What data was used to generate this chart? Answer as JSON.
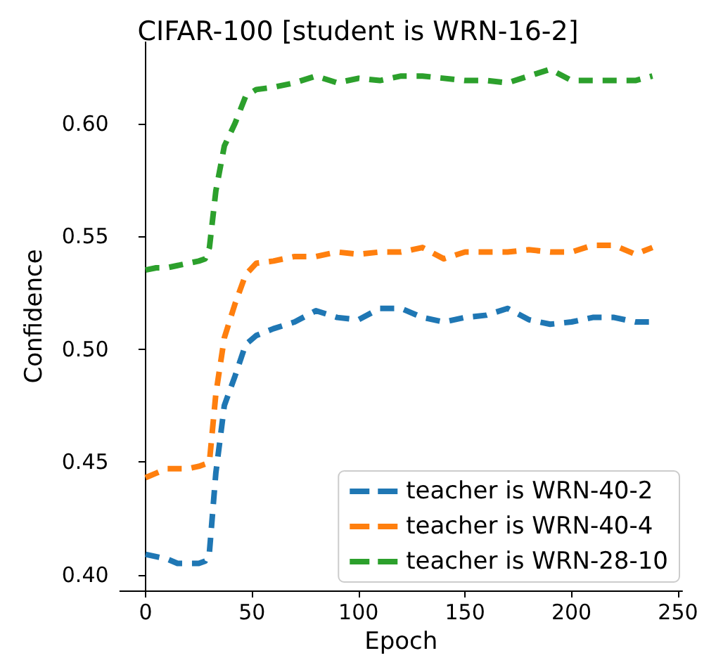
{
  "chart_data": {
    "type": "line",
    "title": "CIFAR-100 [student is WRN-16-2]",
    "xlabel": "Epoch",
    "ylabel": "Confidence",
    "x": [
      0,
      5,
      10,
      15,
      20,
      25,
      28,
      30,
      33,
      37,
      42,
      47,
      52,
      60,
      70,
      80,
      90,
      100,
      110,
      120,
      130,
      140,
      150,
      160,
      170,
      180,
      190,
      200,
      210,
      220,
      230,
      238
    ],
    "series": [
      {
        "name": "teacher is WRN-40-2",
        "color": "#1f77b4",
        "values": [
          0.409,
          0.408,
          0.407,
          0.405,
          0.405,
          0.405,
          0.406,
          0.41,
          0.445,
          0.475,
          0.488,
          0.502,
          0.506,
          0.509,
          0.512,
          0.517,
          0.514,
          0.513,
          0.518,
          0.518,
          0.514,
          0.512,
          0.514,
          0.515,
          0.518,
          0.513,
          0.511,
          0.512,
          0.514,
          0.514,
          0.512,
          0.512
        ]
      },
      {
        "name": "teacher is WRN-40-4",
        "color": "#ff7f0e",
        "values": [
          0.443,
          0.445,
          0.447,
          0.447,
          0.447,
          0.448,
          0.449,
          0.45,
          0.48,
          0.505,
          0.52,
          0.533,
          0.538,
          0.539,
          0.541,
          0.541,
          0.543,
          0.542,
          0.543,
          0.543,
          0.545,
          0.54,
          0.543,
          0.543,
          0.543,
          0.544,
          0.543,
          0.543,
          0.546,
          0.546,
          0.542,
          0.545
        ]
      },
      {
        "name": "teacher is WRN-28-10",
        "color": "#2ca02c",
        "values": [
          0.535,
          0.536,
          0.536,
          0.537,
          0.538,
          0.539,
          0.54,
          0.545,
          0.57,
          0.59,
          0.6,
          0.612,
          0.615,
          0.616,
          0.618,
          0.621,
          0.618,
          0.62,
          0.619,
          0.621,
          0.621,
          0.62,
          0.619,
          0.619,
          0.618,
          0.621,
          0.624,
          0.619,
          0.619,
          0.619,
          0.619,
          0.621
        ]
      }
    ],
    "xlim": [
      -12,
      252
    ],
    "xticks": [
      0,
      50,
      100,
      150,
      200,
      250
    ],
    "ylim": [
      0.393,
      0.636
    ],
    "yticks": [
      {
        "value": 0.4,
        "label": "0.40"
      },
      0.45,
      {
        "value": 0.5,
        "label": "0.50"
      },
      0.55,
      {
        "value": 0.6,
        "label": "0.60"
      }
    ],
    "legend": "bottom right",
    "grid": false,
    "line_style": "dashed",
    "marker": "none"
  }
}
